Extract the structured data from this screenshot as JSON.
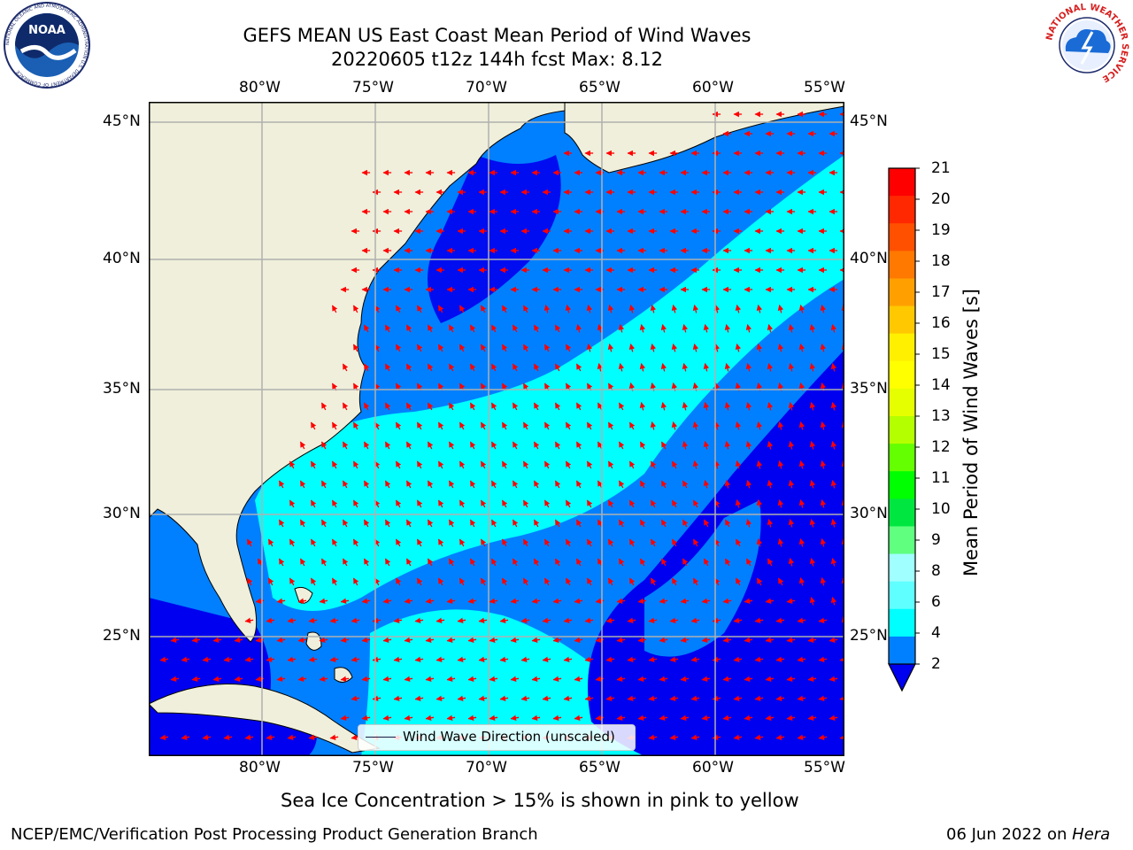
{
  "title": {
    "line1": "GEFS MEAN US East Coast Mean Period of Wind Waves",
    "line2": "20220605 t12z 144h fcst   Max: 8.12"
  },
  "logos": {
    "left": "NOAA",
    "left_ring": "NATIONAL OCEANIC AND ATMOSPHERIC ADMINISTRATION  U.S. DEPARTMENT OF COMMERCE",
    "right_ring": "NATIONAL WEATHER SERVICE"
  },
  "map": {
    "lon_labels": [
      "80°W",
      "75°W",
      "70°W",
      "65°W",
      "60°W",
      "55°W"
    ],
    "lat_labels": [
      "45°N",
      "40°N",
      "35°N",
      "30°N",
      "25°N"
    ],
    "extent": {
      "lon_min": -85,
      "lon_max": -54.3,
      "lat_min": 20.5,
      "lat_max": 45.8
    },
    "colors": {
      "land": "#efefdb",
      "ocean_low": "#0000f0",
      "ocean_mid": "#0080ff",
      "ocean_high": "#00ffff",
      "ocean_top": "#7fffff",
      "arrow": "#ff0000",
      "grid": "#b0b0b0"
    }
  },
  "legend": {
    "label": "Wind Wave Direction (unscaled)"
  },
  "colorbar": {
    "label": "Mean Period of Wind Waves [s]",
    "ticks": [
      "21",
      "20",
      "19",
      "18",
      "17",
      "16",
      "15",
      "14",
      "13",
      "12",
      "11",
      "10",
      "9",
      "8",
      "6",
      "4",
      "2"
    ],
    "colors": [
      "#ff0000",
      "#ff2800",
      "#ff5000",
      "#ff7800",
      "#ffa000",
      "#ffc800",
      "#fff000",
      "#ffff00",
      "#e6ff00",
      "#b4ff00",
      "#64ff00",
      "#00ff00",
      "#00e640",
      "#60ff80",
      "#a0ffff",
      "#60ffff",
      "#00ffff",
      "#0080ff"
    ],
    "extend_color": "#0000f0"
  },
  "subtitle": "Sea Ice Concentration > 15% is shown in pink to yellow",
  "footer": {
    "left": "NCEP/EMC/Verification Post Processing Product Generation Branch",
    "right_date": "06 Jun 2022 on ",
    "right_host": "Hera"
  }
}
